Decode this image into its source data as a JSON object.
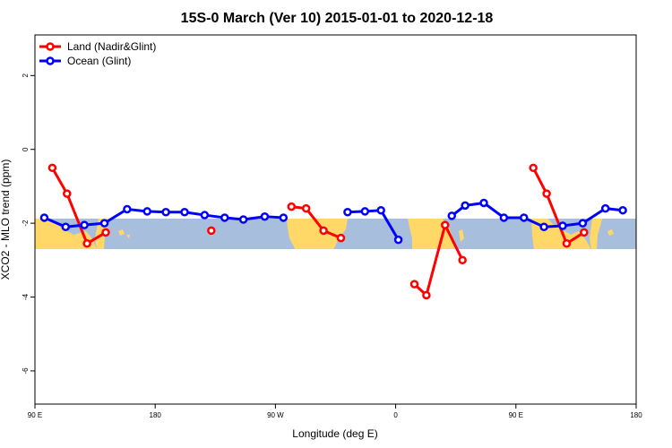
{
  "chart_data": {
    "type": "line",
    "title": "15S-0 March (Ver 10)   2015-01-01 to 2020-12-18",
    "xlabel": "Longitude (deg E)",
    "ylabel": "XCO2 - MLO trend (ppm)",
    "xlim": [
      90,
      540
    ],
    "ylim": [
      -6.9,
      3.1
    ],
    "x_ticks": [
      {
        "value": 90,
        "label": "90 E"
      },
      {
        "value": 180,
        "label": "180"
      },
      {
        "value": 270,
        "label": "90 W"
      },
      {
        "value": 360,
        "label": "0"
      },
      {
        "value": 450,
        "label": "90 E"
      },
      {
        "value": 540,
        "label": "180"
      }
    ],
    "y_ticks": [
      {
        "value": 2,
        "label": "2"
      },
      {
        "value": 0,
        "label": "0"
      },
      {
        "value": -2,
        "label": "-2"
      },
      {
        "value": -4,
        "label": "-4"
      },
      {
        "value": -6,
        "label": "-6"
      }
    ],
    "map_band": {
      "lat_range": [
        -15,
        0
      ],
      "y_range": [
        -2.7,
        -1.85
      ]
    },
    "legend": {
      "position": "top-left"
    },
    "series": [
      {
        "name": "Land (Nadir&Glint)",
        "color": "#ff0000",
        "segments": [
          [
            [
              103,
              -0.5
            ],
            [
              114,
              -1.2
            ],
            [
              129,
              -2.55
            ],
            [
              143,
              -2.25
            ]
          ],
          [
            [
              222,
              -2.2
            ]
          ],
          [
            [
              282,
              -1.55
            ],
            [
              293,
              -1.6
            ],
            [
              306,
              -2.2
            ],
            [
              319,
              -2.4
            ]
          ],
          [
            [
              374,
              -3.65
            ],
            [
              383,
              -3.95
            ],
            [
              397,
              -2.05
            ],
            [
              410,
              -3.0
            ]
          ],
          [
            [
              463,
              -0.5
            ],
            [
              473,
              -1.2
            ],
            [
              488,
              -2.55
            ],
            [
              501,
              -2.25
            ]
          ]
        ]
      },
      {
        "name": "Ocean (Glint)",
        "color": "#0000ff",
        "segments": [
          [
            [
              97,
              -1.85
            ],
            [
              113,
              -2.1
            ],
            [
              127,
              -2.05
            ],
            [
              142,
              -2.0
            ],
            [
              159,
              -1.62
            ],
            [
              174,
              -1.68
            ],
            [
              188,
              -1.7
            ],
            [
              202,
              -1.7
            ],
            [
              217,
              -1.78
            ],
            [
              232,
              -1.85
            ],
            [
              246,
              -1.9
            ],
            [
              262,
              -1.82
            ],
            [
              276,
              -1.85
            ]
          ],
          [
            [
              324,
              -1.7
            ],
            [
              337,
              -1.68
            ],
            [
              349,
              -1.65
            ],
            [
              362,
              -2.45
            ]
          ],
          [
            [
              402,
              -1.8
            ],
            [
              412,
              -1.52
            ],
            [
              426,
              -1.45
            ],
            [
              441,
              -1.85
            ],
            [
              456,
              -1.85
            ],
            [
              471,
              -2.1
            ],
            [
              485,
              -2.07
            ],
            [
              500,
              -2.0
            ],
            [
              517,
              -1.6
            ],
            [
              530,
              -1.65
            ]
          ]
        ]
      }
    ]
  }
}
